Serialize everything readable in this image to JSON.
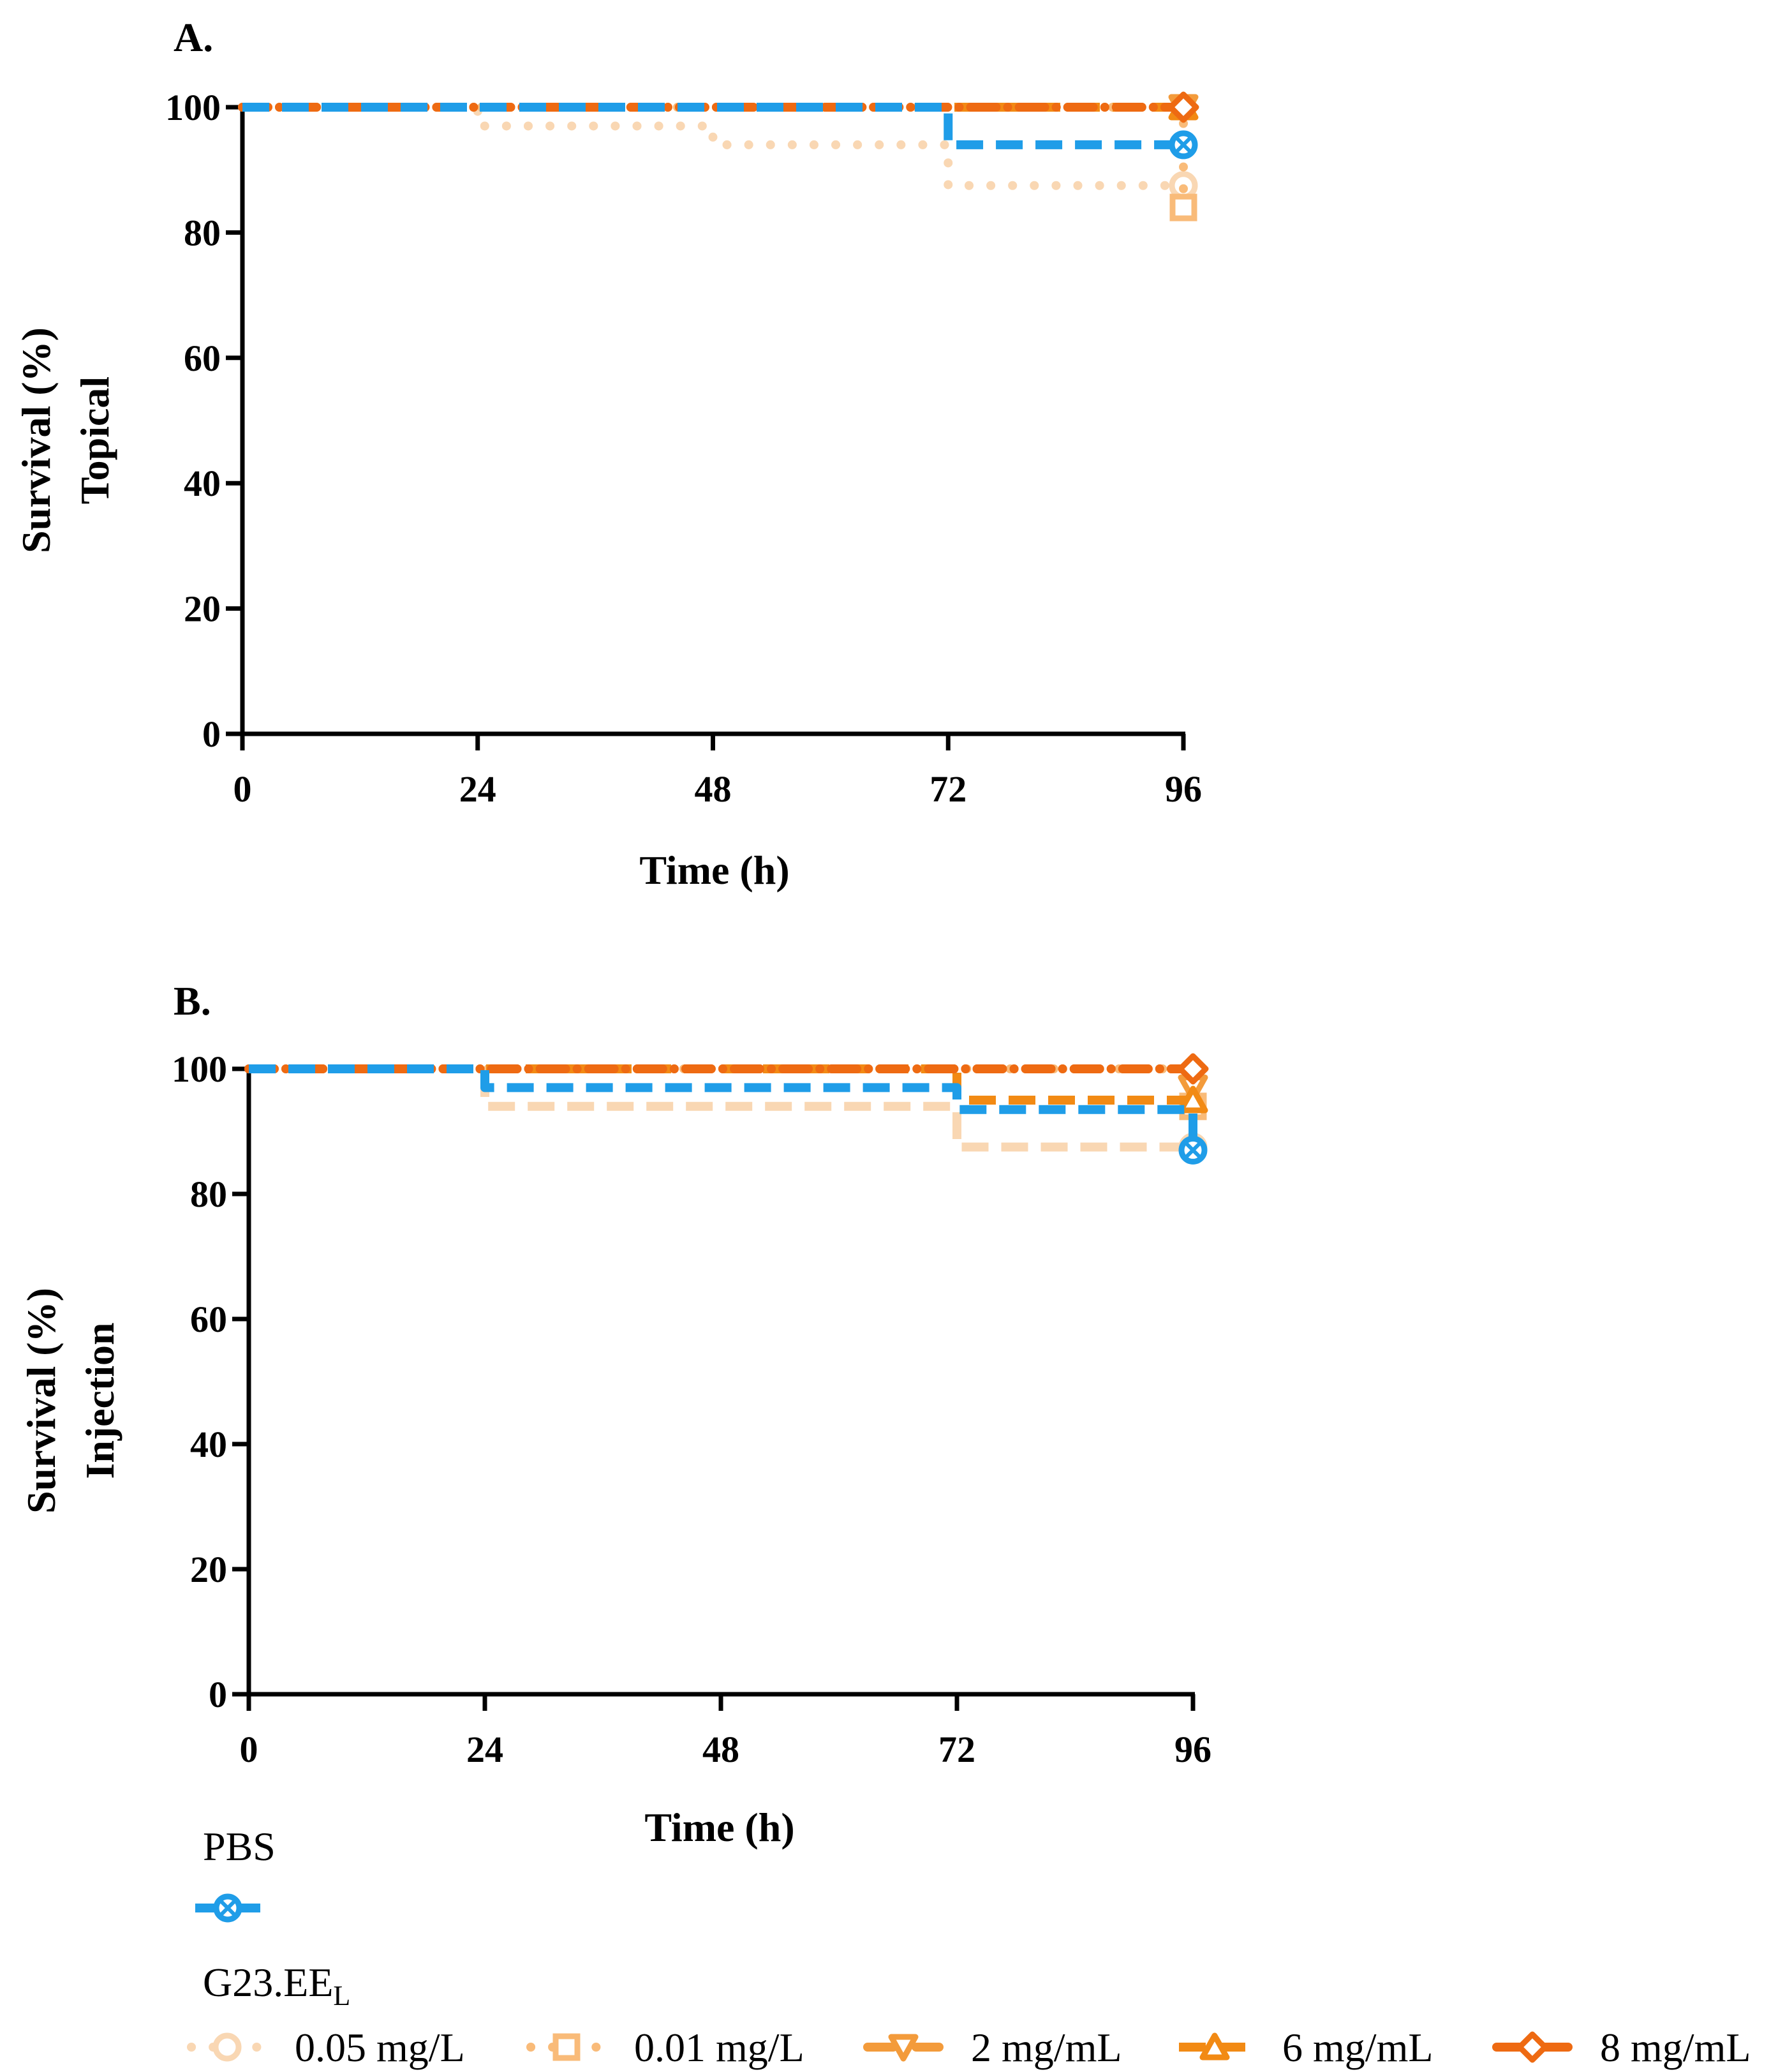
{
  "figure": {
    "legend": {
      "ctrl_label": "PBS",
      "group_label": "G23.EE",
      "group_sub": "L",
      "items": [
        {
          "label": "0.05 mg/L"
        },
        {
          "label": "0.01 mg/L"
        },
        {
          "label": "2 mg/mL"
        },
        {
          "label": "6 mg/mL"
        },
        {
          "label": "8 mg/mL"
        }
      ]
    }
  },
  "chart_data": [
    {
      "type": "line",
      "panel": "A.",
      "title": "",
      "xlabel": "Time (h)",
      "ylabel_lines": [
        "Survival (%)",
        "Topical"
      ],
      "xlim": [
        0,
        96
      ],
      "ylim": [
        0,
        100
      ],
      "xticks": [
        0,
        24,
        48,
        72,
        96
      ],
      "yticks": [
        0,
        20,
        40,
        60,
        80,
        100
      ],
      "series": [
        {
          "name": "0.05 mg/L",
          "color": "#f9d7b3",
          "style": "dot",
          "marker": "circle",
          "x": [
            0,
            24,
            48,
            72,
            96
          ],
          "y": [
            100,
            97,
            94,
            87.5,
            87.5
          ]
        },
        {
          "name": "0.01 mg/L",
          "color": "#f9bb79",
          "style": "dot",
          "marker": "square",
          "x": [
            0,
            72,
            96
          ],
          "y": [
            100,
            100,
            84
          ]
        },
        {
          "name": "2 mg/mL",
          "color": "#f39b3b",
          "style": "dashdot",
          "marker": "triangle-down",
          "x": [
            0,
            96
          ],
          "y": [
            100,
            100
          ]
        },
        {
          "name": "6 mg/mL",
          "color": "#f28a14",
          "style": "dash",
          "marker": "triangle-up",
          "x": [
            0,
            96
          ],
          "y": [
            100,
            100
          ]
        },
        {
          "name": "8 mg/mL",
          "color": "#ee6a12",
          "style": "dashdot",
          "marker": "diamond",
          "x": [
            0,
            96
          ],
          "y": [
            100,
            100
          ]
        },
        {
          "name": "PBS",
          "color": "#1f9de8",
          "style": "dash",
          "marker": "circle-x",
          "x": [
            0,
            72,
            96
          ],
          "y": [
            100,
            94,
            94
          ]
        }
      ]
    },
    {
      "type": "line",
      "panel": "B.",
      "title": "",
      "xlabel": "Time (h)",
      "ylabel_lines": [
        "Survival  (%)",
        "Injection"
      ],
      "xlim": [
        0,
        96
      ],
      "ylim": [
        0,
        100
      ],
      "xticks": [
        0,
        24,
        48,
        72,
        96
      ],
      "yticks": [
        0,
        20,
        40,
        60,
        80,
        100
      ],
      "series": [
        {
          "name": "0.05 mg/L",
          "color": "#f9d7b3",
          "style": "dash",
          "marker": "circle",
          "x": [
            0,
            24,
            72,
            96
          ],
          "y": [
            100,
            94,
            87.5,
            87.5
          ]
        },
        {
          "name": "0.01 mg/L",
          "color": "#f9bb79",
          "style": "dot",
          "marker": "square",
          "x": [
            0,
            96
          ],
          "y": [
            100,
            94
          ]
        },
        {
          "name": "2 mg/mL",
          "color": "#f39b3b",
          "style": "dashdot",
          "marker": "triangle-down",
          "x": [
            0,
            96
          ],
          "y": [
            100,
            97
          ]
        },
        {
          "name": "6 mg/mL",
          "color": "#f28a14",
          "style": "dash",
          "marker": "triangle-up",
          "x": [
            0,
            72,
            96
          ],
          "y": [
            100,
            95,
            95
          ]
        },
        {
          "name": "8 mg/mL",
          "color": "#ee6a12",
          "style": "dashdot",
          "marker": "diamond",
          "x": [
            0,
            96
          ],
          "y": [
            100,
            100
          ]
        },
        {
          "name": "PBS",
          "color": "#1f9de8",
          "style": "dash",
          "marker": "circle-x",
          "x": [
            0,
            24,
            72,
            96
          ],
          "y": [
            100,
            97,
            93.5,
            87
          ]
        }
      ]
    }
  ]
}
